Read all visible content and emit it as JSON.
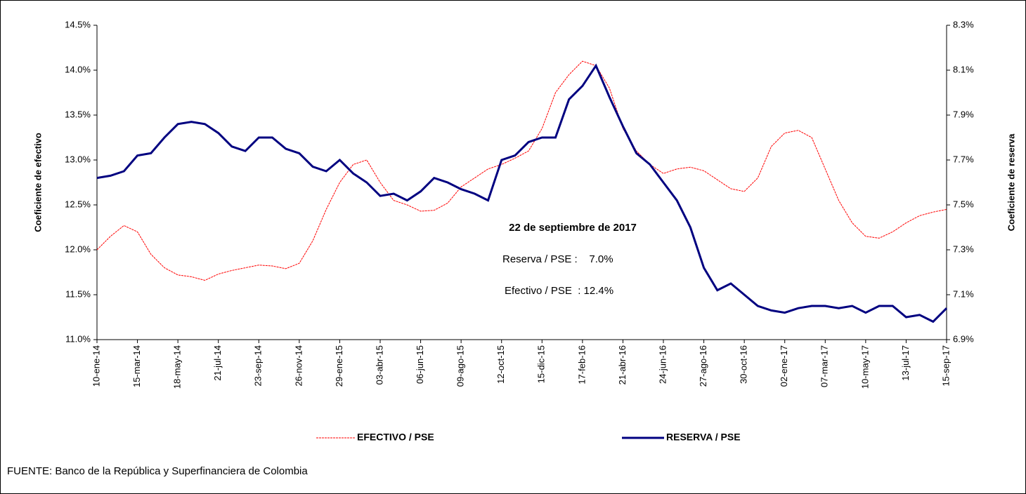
{
  "chart_data": {
    "type": "line",
    "y_label": "Coeficiente de efectivo",
    "y2_label": "Coeficiente de reserva",
    "annotations": [
      "22 de septiembre de 2017",
      "Reserva / PSE :    7.0%",
      "Efectivo / PSE  : 12.4%"
    ],
    "source": "FUENTE: Banco de la República y Superfinanciera de Colombia",
    "categories": [
      "10-ene-14",
      null,
      null,
      "15-mar-14",
      null,
      null,
      "18-may-14",
      null,
      null,
      "21-jul-14",
      null,
      null,
      "23-sep-14",
      null,
      null,
      "26-nov-14",
      null,
      null,
      "29-ene-15",
      null,
      null,
      "03-abr-15",
      null,
      null,
      "06-jun-15",
      null,
      null,
      "09-ago-15",
      null,
      null,
      "12-oct-15",
      null,
      null,
      "15-dic-15",
      null,
      null,
      "17-feb-16",
      null,
      null,
      "21-abr-16",
      null,
      null,
      "24-jun-16",
      null,
      null,
      "27-ago-16",
      null,
      null,
      "30-oct-16",
      null,
      null,
      "02-ene-17",
      null,
      null,
      "07-mar-17",
      null,
      null,
      "10-may-17",
      null,
      null,
      "13-jul-17",
      null,
      null,
      "15-sep-17"
    ],
    "series": [
      {
        "name": "EFECTIVO / PSE",
        "color": "#ff0000",
        "axis": "y",
        "values": [
          12.0,
          12.15,
          12.27,
          12.2,
          11.95,
          11.8,
          11.72,
          11.7,
          11.66,
          11.73,
          11.77,
          11.8,
          11.83,
          11.82,
          11.79,
          11.85,
          12.1,
          12.45,
          12.75,
          12.95,
          13.0,
          12.75,
          12.55,
          12.5,
          12.43,
          12.44,
          12.52,
          12.7,
          12.8,
          12.9,
          12.95,
          13.02,
          13.1,
          13.35,
          13.75,
          13.95,
          14.1,
          14.05,
          13.8,
          13.35,
          13.1,
          12.95,
          12.85,
          12.9,
          12.92,
          12.88,
          12.78,
          12.68,
          12.65,
          12.8,
          13.15,
          13.3,
          13.33,
          13.25,
          12.9,
          12.55,
          12.3,
          12.15,
          12.13,
          12.2,
          12.3,
          12.38,
          12.42,
          12.45
        ]
      },
      {
        "name": "RESERVA / PSE",
        "color": "#000080",
        "axis": "y2",
        "values": [
          7.62,
          7.63,
          7.65,
          7.72,
          7.73,
          7.8,
          7.86,
          7.87,
          7.86,
          7.82,
          7.76,
          7.74,
          7.8,
          7.8,
          7.75,
          7.73,
          7.67,
          7.65,
          7.7,
          7.64,
          7.6,
          7.54,
          7.55,
          7.52,
          7.56,
          7.62,
          7.6,
          7.57,
          7.55,
          7.52,
          7.7,
          7.72,
          7.78,
          7.8,
          7.8,
          7.97,
          8.03,
          8.12,
          7.98,
          7.85,
          7.73,
          7.68,
          7.6,
          7.52,
          7.4,
          7.22,
          7.12,
          7.15,
          7.1,
          7.05,
          7.03,
          7.02,
          7.04,
          7.05,
          7.05,
          7.04,
          7.05,
          7.02,
          7.05,
          7.05,
          7.0,
          7.01,
          6.98,
          7.04
        ]
      }
    ],
    "ylim": [
      11.0,
      14.5
    ],
    "yticks": [
      {
        "value": 11.0,
        "label": "11.0%"
      },
      {
        "value": 11.5,
        "label": "11.5%"
      },
      {
        "value": 12.0,
        "label": "12.0%"
      },
      {
        "value": 12.5,
        "label": "12.5%"
      },
      {
        "value": 13.0,
        "label": "13.0%"
      },
      {
        "value": 13.5,
        "label": "13.5%"
      },
      {
        "value": 14.0,
        "label": "14.0%"
      },
      {
        "value": 14.5,
        "label": "14.5%"
      }
    ],
    "y2lim": [
      6.9,
      8.3
    ],
    "y2ticks": [
      {
        "value": 6.9,
        "label": "6.9%"
      },
      {
        "value": 7.1,
        "label": "7.1%"
      },
      {
        "value": 7.3,
        "label": "7.3%"
      },
      {
        "value": 7.5,
        "label": "7.5%"
      },
      {
        "value": 7.7,
        "label": "7.7%"
      },
      {
        "value": 7.9,
        "label": "7.9%"
      },
      {
        "value": 8.1,
        "label": "8.1%"
      },
      {
        "value": 8.3,
        "label": "8.3%"
      }
    ],
    "grid": false
  }
}
